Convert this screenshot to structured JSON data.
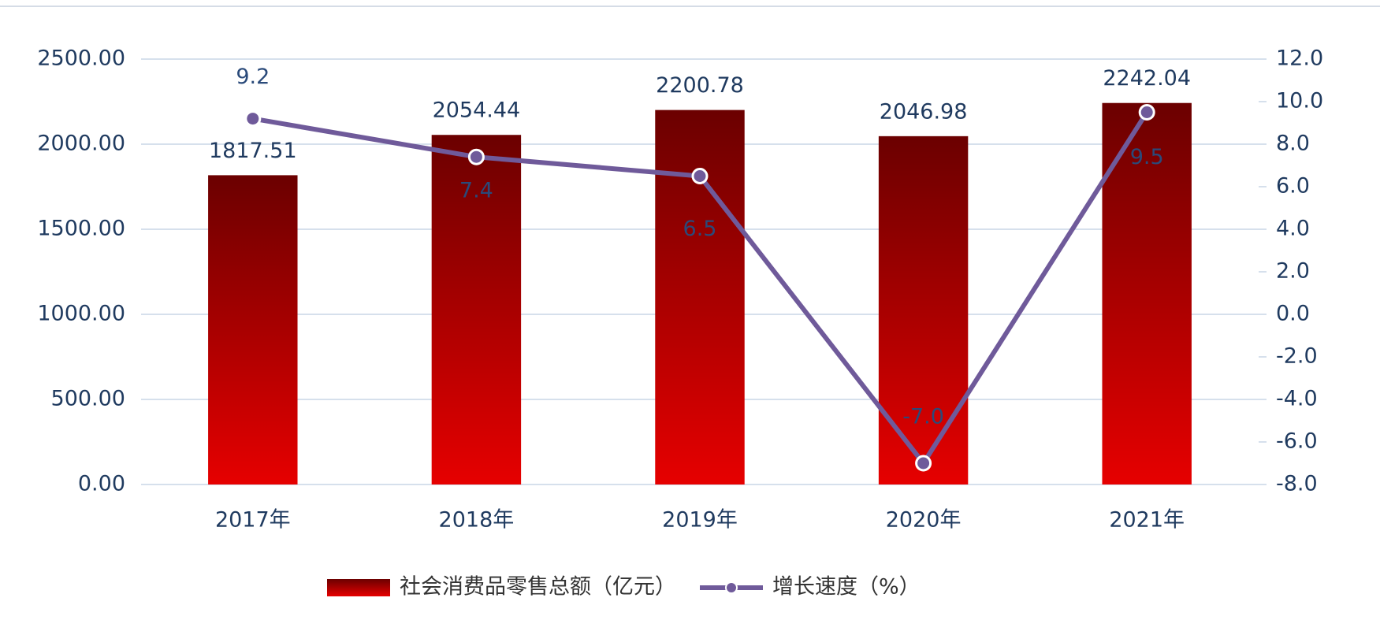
{
  "chart_data": {
    "type": "bar_line",
    "categories": [
      "2017年",
      "2018年",
      "2019年",
      "2020年",
      "2021年"
    ],
    "series": [
      {
        "name": "社会消费品零售总额（亿元）",
        "type": "bar",
        "color": "#e60000",
        "values": [
          1817.51,
          2054.44,
          2200.78,
          2046.98,
          2242.04
        ]
      },
      {
        "name": "增长速度（%）",
        "type": "line",
        "axis": "y2",
        "color": "#6f5a9a",
        "values": [
          9.2,
          7.4,
          6.5,
          -7.0,
          9.5
        ],
        "value_labels": [
          "9.2",
          "7.4",
          "6.5",
          "-7.0",
          "9.5"
        ]
      }
    ],
    "ylim": [
      0,
      2500
    ],
    "yticks": [
      {
        "value": 0,
        "label": "0.00"
      },
      {
        "value": 500,
        "label": "500.00"
      },
      {
        "value": 1000,
        "label": "1000.00"
      },
      {
        "value": 1500,
        "label": "1500.00"
      },
      {
        "value": 2000,
        "label": "2000.00"
      },
      {
        "value": 2500,
        "label": "2500.00"
      }
    ],
    "y2lim": [
      -8,
      12
    ],
    "y2ticks": [
      {
        "value": -8,
        "label": "-8.0"
      },
      {
        "value": -6,
        "label": "-6.0"
      },
      {
        "value": -4,
        "label": "-4.0"
      },
      {
        "value": -2,
        "label": "-2.0"
      },
      {
        "value": 0,
        "label": "0.0"
      },
      {
        "value": 2,
        "label": "2.0"
      },
      {
        "value": 4,
        "label": "4.0"
      },
      {
        "value": 6,
        "label": "6.0"
      },
      {
        "value": 8,
        "label": "8.0"
      },
      {
        "value": 10,
        "label": "10.0"
      },
      {
        "value": 12,
        "label": "12.0"
      }
    ],
    "grid": true,
    "legend": "bottom"
  }
}
